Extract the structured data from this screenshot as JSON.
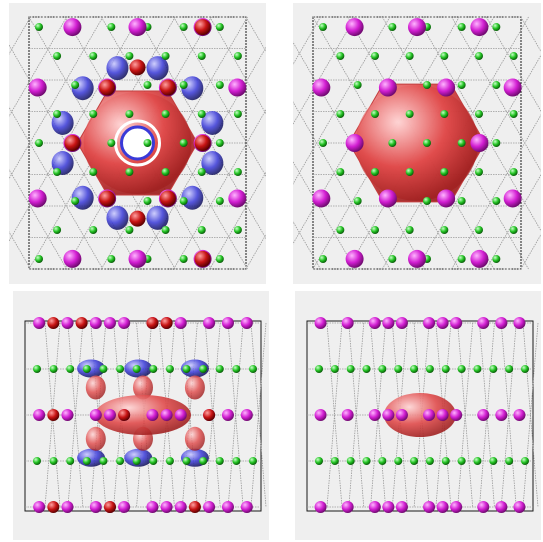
{
  "figure": {
    "panels": [
      {
        "id": "top-left",
        "view": "top",
        "isosurface_red": true,
        "isosurface_blue": true,
        "central_ring": true
      },
      {
        "id": "top-right",
        "view": "top",
        "isosurface_red": true,
        "isosurface_blue": false,
        "central_ring": false
      },
      {
        "id": "bottom-left",
        "view": "side",
        "isosurface_red": true,
        "isosurface_blue": true
      },
      {
        "id": "bottom-right",
        "view": "side",
        "isosurface_red": true,
        "isosurface_blue": false
      }
    ],
    "colors": {
      "panel_bg": "#efefef",
      "atom_magenta": "#d21ed2",
      "atom_green": "#22c322",
      "atom_red": "#c81414",
      "isosurface_red": "#e04848",
      "isosurface_blue": "#3a3ad8",
      "bond": "#9a9a9a",
      "cell_box": "#1a1a1a"
    }
  }
}
